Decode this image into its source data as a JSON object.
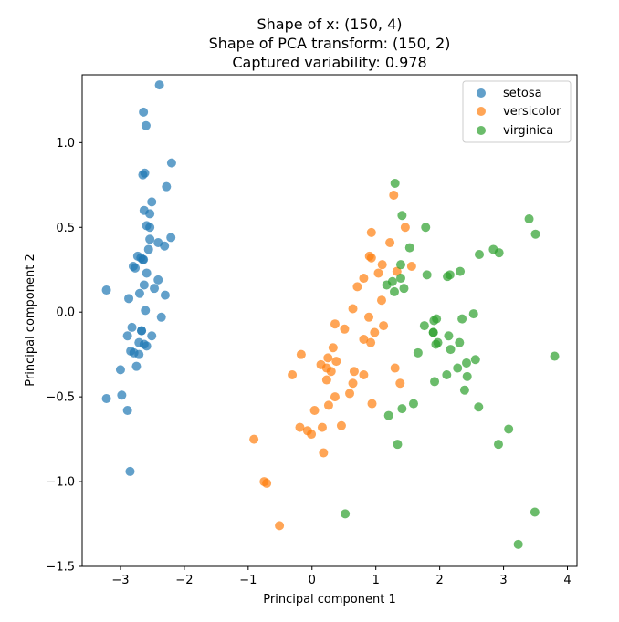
{
  "chart_data": {
    "type": "scatter",
    "title_lines": [
      "Shape of x: (150, 4)",
      "Shape of PCA transform: (150, 2)",
      "Captured variability: 0.978"
    ],
    "xlabel": "Principal component 1",
    "ylabel": "Principal component 2",
    "xlim": [
      -3.6,
      4.15
    ],
    "ylim": [
      -1.5,
      1.4
    ],
    "xticks": [
      -3,
      -2,
      -1,
      0,
      1,
      2,
      3,
      4
    ],
    "yticks": [
      -1.5,
      -1.0,
      -0.5,
      0.0,
      0.5,
      1.0
    ],
    "grid": false,
    "legend_position": "top-right",
    "series": [
      {
        "name": "setosa",
        "color": "#1f77b4",
        "points": [
          [
            -2.68,
            0.32
          ],
          [
            -2.71,
            -0.18
          ],
          [
            -2.89,
            -0.14
          ],
          [
            -2.75,
            -0.32
          ],
          [
            -2.73,
            0.33
          ],
          [
            -2.28,
            0.74
          ],
          [
            -2.82,
            -0.09
          ],
          [
            -2.63,
            0.16
          ],
          [
            -2.89,
            -0.58
          ],
          [
            -2.67,
            -0.11
          ],
          [
            -2.51,
            0.65
          ],
          [
            -2.61,
            0.01
          ],
          [
            -2.79,
            -0.24
          ],
          [
            -3.22,
            -0.51
          ],
          [
            -2.64,
            1.18
          ],
          [
            -2.39,
            1.34
          ],
          [
            -2.62,
            0.82
          ],
          [
            -2.65,
            0.31
          ],
          [
            -2.2,
            0.88
          ],
          [
            -2.59,
            0.51
          ],
          [
            -2.31,
            0.39
          ],
          [
            -2.54,
            0.43
          ],
          [
            -3.22,
            0.13
          ],
          [
            -2.3,
            0.1
          ],
          [
            -2.36,
            -0.03
          ],
          [
            -2.51,
            -0.14
          ],
          [
            -2.47,
            0.14
          ],
          [
            -2.56,
            0.37
          ],
          [
            -2.64,
            0.31
          ],
          [
            -2.63,
            -0.19
          ],
          [
            -2.59,
            -0.2
          ],
          [
            -2.41,
            0.41
          ],
          [
            -2.65,
            0.81
          ],
          [
            -2.6,
            1.1
          ],
          [
            -2.67,
            -0.11
          ],
          [
            -2.87,
            0.08
          ],
          [
            -2.63,
            0.6
          ],
          [
            -2.8,
            0.27
          ],
          [
            -2.98,
            -0.49
          ],
          [
            -2.59,
            0.23
          ],
          [
            -2.77,
            0.26
          ],
          [
            -2.85,
            -0.94
          ],
          [
            -3,
            -0.34
          ],
          [
            -2.41,
            0.19
          ],
          [
            -2.21,
            0.44
          ],
          [
            -2.71,
            -0.25
          ],
          [
            -2.54,
            0.5
          ],
          [
            -2.84,
            -0.23
          ],
          [
            -2.54,
            0.58
          ],
          [
            -2.7,
            0.11
          ]
        ]
      },
      {
        "name": "versicolor",
        "color": "#ff7f0e",
        "points": [
          [
            1.28,
            0.69
          ],
          [
            0.93,
            0.32
          ],
          [
            1.46,
            0.5
          ],
          [
            0.18,
            -0.83
          ],
          [
            1.09,
            0.07
          ],
          [
            0.64,
            -0.42
          ],
          [
            1.1,
            0.28
          ],
          [
            -0.75,
            -1.0
          ],
          [
            1.04,
            0.23
          ],
          [
            -0.01,
            -0.72
          ],
          [
            -0.51,
            -1.26
          ],
          [
            0.51,
            -0.1
          ],
          [
            0.26,
            -0.55
          ],
          [
            0.98,
            -0.12
          ],
          [
            -0.17,
            -0.25
          ],
          [
            0.93,
            0.47
          ],
          [
            0.66,
            -0.35
          ],
          [
            0.23,
            -0.33
          ],
          [
            0.94,
            -0.54
          ],
          [
            0.04,
            -0.58
          ],
          [
            1.12,
            -0.08
          ],
          [
            0.36,
            -0.07
          ],
          [
            1.3,
            -0.33
          ],
          [
            0.92,
            -0.18
          ],
          [
            0.71,
            0.15
          ],
          [
            0.9,
            0.33
          ],
          [
            1.33,
            0.24
          ],
          [
            1.56,
            0.27
          ],
          [
            0.81,
            -0.16
          ],
          [
            -0.31,
            -0.37
          ],
          [
            -0.07,
            -0.7
          ],
          [
            -0.19,
            -0.68
          ],
          [
            0.14,
            -0.31
          ],
          [
            1.38,
            -0.42
          ],
          [
            0.59,
            -0.48
          ],
          [
            0.81,
            0.2
          ],
          [
            1.22,
            0.41
          ],
          [
            0.81,
            -0.37
          ],
          [
            0.25,
            -0.27
          ],
          [
            0.16,
            -0.68
          ],
          [
            0.46,
            -0.67
          ],
          [
            0.89,
            -0.03
          ],
          [
            0.23,
            -0.4
          ],
          [
            -0.71,
            -1.01
          ],
          [
            0.36,
            -0.5
          ],
          [
            0.33,
            -0.21
          ],
          [
            0.38,
            -0.29
          ],
          [
            0.64,
            0.02
          ],
          [
            -0.91,
            -0.75
          ],
          [
            0.3,
            -0.35
          ]
        ]
      },
      {
        "name": "virginica",
        "color": "#2ca02c",
        "points": [
          [
            2.53,
            -0.01
          ],
          [
            1.41,
            -0.57
          ],
          [
            2.62,
            0.34
          ],
          [
            1.97,
            -0.18
          ],
          [
            2.35,
            -0.04
          ],
          [
            3.4,
            0.55
          ],
          [
            0.52,
            -1.19
          ],
          [
            2.93,
            0.35
          ],
          [
            2.32,
            0.24
          ],
          [
            2.92,
            -0.78
          ],
          [
            1.66,
            -0.24
          ],
          [
            1.8,
            0.22
          ],
          [
            2.17,
            -0.22
          ],
          [
            1.34,
            -0.78
          ],
          [
            1.59,
            -0.54
          ],
          [
            1.9,
            -0.12
          ],
          [
            1.95,
            -0.04
          ],
          [
            3.49,
            -1.18
          ],
          [
            3.8,
            -0.26
          ],
          [
            1.3,
            0.76
          ],
          [
            2.43,
            -0.38
          ],
          [
            1.2,
            -0.61
          ],
          [
            3.5,
            0.46
          ],
          [
            1.39,
            0.2
          ],
          [
            2.28,
            -0.33
          ],
          [
            2.61,
            -0.56
          ],
          [
            1.26,
            0.18
          ],
          [
            1.29,
            0.12
          ],
          [
            2.12,
            0.21
          ],
          [
            2.39,
            -0.46
          ],
          [
            2.84,
            0.37
          ],
          [
            3.23,
            -1.37
          ],
          [
            2.16,
            0.22
          ],
          [
            1.44,
            0.14
          ],
          [
            1.78,
            0.5
          ],
          [
            3.08,
            -0.69
          ],
          [
            2.14,
            -0.14
          ],
          [
            1.91,
            -0.05
          ],
          [
            1.17,
            0.16
          ],
          [
            2.11,
            -0.37
          ],
          [
            2.31,
            -0.18
          ],
          [
            1.92,
            -0.41
          ],
          [
            1.41,
            0.57
          ],
          [
            2.56,
            -0.28
          ],
          [
            2.42,
            -0.3
          ],
          [
            1.94,
            -0.19
          ],
          [
            1.53,
            0.38
          ],
          [
            1.76,
            -0.08
          ],
          [
            1.9,
            -0.12
          ],
          [
            1.39,
            0.28
          ]
        ]
      }
    ]
  }
}
